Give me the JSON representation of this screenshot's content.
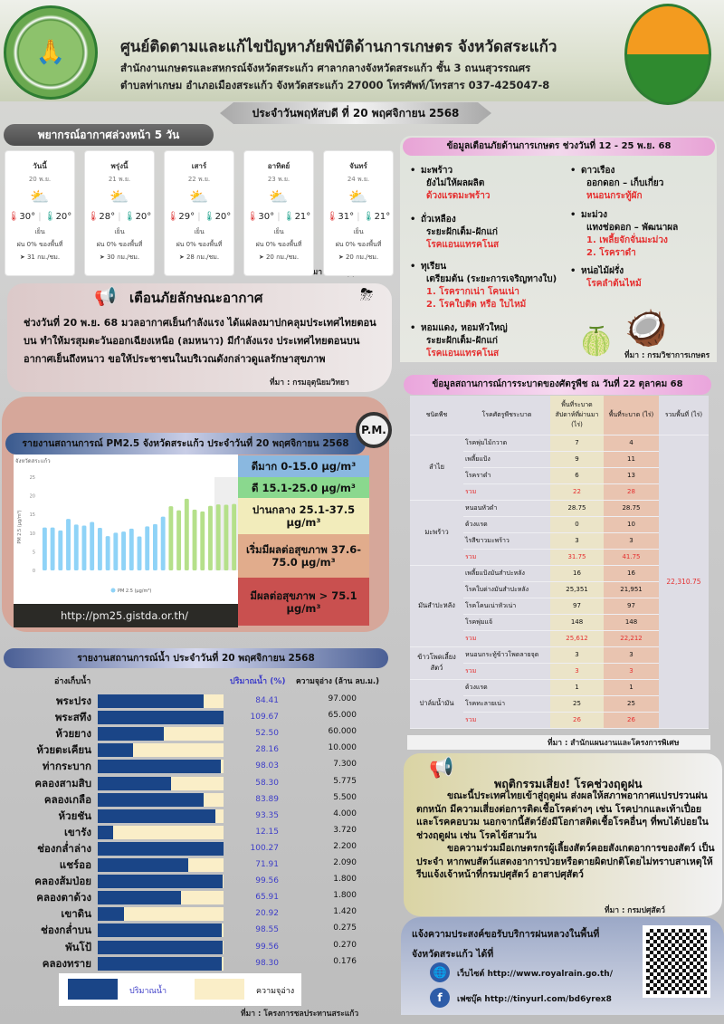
{
  "header": {
    "title": "ศูนย์ติดตามและแก้ไขปัญหาภัยพิบัติด้านการเกษตร จังหวัดสระแก้ว",
    "address1": "สำนักงานเกษตรและสหกรณ์จังหวัดสระแก้ว ศาลากลางจังหวัดสระแก้ว ชั้น 3 ถนนสุวรรณศร",
    "address2": "ตำบลท่าเกษม อำเภอเมืองสระแก้ว จังหวัดสระแก้ว 27000 โทรศัพท์/โทรสาร 037-425047-8",
    "date": "ประจำวันพฤหัสบดี ที่ 20 พฤศจิกายน 2568",
    "logo_left_text": "กระทรวงเกษตรและสหกรณ์ MINISTRY OF AGRICULTURE AND COOPERATIVES"
  },
  "weather": {
    "title": "พยากรณ์อากาศล่วงหน้า 5 วัน",
    "source": "ที่มา : กรมอุตุนิยมวิทยา",
    "days": [
      {
        "day": "วันนี้",
        "date": "20 พ.ย.",
        "high": "30°",
        "low": "20°",
        "cond": "เย็น",
        "rain": "ฝน 0% ของพื้นที่",
        "wind": "31 กม./ชม.",
        "icon": "partly-cloudy-icon"
      },
      {
        "day": "พรุ่งนี้",
        "date": "21 พ.ย.",
        "high": "28°",
        "low": "20°",
        "cond": "เย็น",
        "rain": "ฝน 0% ของพื้นที่",
        "wind": "30 กม./ชม.",
        "icon": "partly-cloudy-icon"
      },
      {
        "day": "เสาร์",
        "date": "22 พ.ย.",
        "high": "29°",
        "low": "20°",
        "cond": "เย็น",
        "rain": "ฝน 0% ของพื้นที่",
        "wind": "28 กม./ชม.",
        "icon": "partly-cloudy-icon"
      },
      {
        "day": "อาทิตย์",
        "date": "23 พ.ย.",
        "high": "30°",
        "low": "21°",
        "cond": "เย็น",
        "rain": "ฝน 0% ของพื้นที่",
        "wind": "20 กม./ชม.",
        "icon": "partly-cloudy-icon"
      },
      {
        "day": "จันทร์",
        "date": "24 พ.ย.",
        "high": "31°",
        "low": "21°",
        "cond": "เย็น",
        "rain": "ฝน 0% ของพื้นที่",
        "wind": "20 กม./ชม.",
        "icon": "partly-cloudy-icon"
      }
    ]
  },
  "weather_warning": {
    "title": "เตือนภัยลักษณะอากาศ",
    "body": "ช่วงวันที่ 20 พ.ย. 68 มวลอากาศเย็นกำลังแรง ได้แผ่ลงมาปกคลุมประเทศไทยตอนบน ทำให้มรสุมตะวันออกเฉียงเหนือ (ลมหนาว) มีกำลังแรง ประเทศไทยตอนบนอากาศเย็นถึงหนาว ขอให้ประชาชนในบริเวณดังกล่าวดูแลรักษาสุขภาพ",
    "source": "ที่มา : กรมอุตุนิยมวิทยา"
  },
  "pm25": {
    "title": "รายงานสถานการณ์ PM2.5 จังหวัดสระแก้ว ประจำวันที่ 20 พฤศจิกายน 2568",
    "badge": "P.M.",
    "url": "http://pm25.gistda.or.th/",
    "levels": [
      {
        "label": "ดีมาก 0-15.0 µg/m³",
        "color": "#8ab8e0"
      },
      {
        "label": "ดี 15.1-25.0 µg/m³",
        "color": "#8ad88e"
      },
      {
        "label": "ปานกลาง 25.1-37.5 µg/m³",
        "color": "#f2ecbb"
      },
      {
        "label": "เริ่มมีผลต่อสุขภาพ 37.6-75.0 µg/m³",
        "color": "#e1ac8c"
      },
      {
        "label": "มีผลต่อสุขภาพ > 75.1 µg/m³",
        "color": "#c9504f"
      }
    ]
  },
  "chart_data": {
    "type": "bar",
    "title": "จังหวัดสระแก้ว",
    "ylabel": "PM 2.5 (µg/m³)",
    "legend": "PM 2.5 (µg/m³)",
    "legend_position": "bottom",
    "ylim": [
      0,
      25
    ],
    "yticks": [
      0,
      5,
      10,
      15,
      20,
      25
    ],
    "grid": false,
    "values": [
      11.5,
      11.5,
      10.7,
      13.8,
      12.3,
      12.0,
      13.0,
      11.4,
      9.2,
      10.1,
      10.4,
      11.2,
      9.1,
      11.8,
      12.4,
      14.4,
      17.2,
      16.1,
      19.2,
      16.3,
      15.8,
      17.3,
      17.7,
      17.6,
      17.8
    ],
    "colors": {
      "very_good": "#8fd3f7",
      "good": "#b5e08a"
    }
  },
  "water": {
    "title": "รายงานสถานการณ์น้ำ ประจำวันที่ 20 พฤศจิกายน 2568",
    "col_name": "อ่างเก็บน้ำ",
    "col_pct": "ปริมาณน้ำ (%)",
    "col_cap": "ความจุอ่าง (ล้าน ลบ.ม.)",
    "legend_water": "ปริมาณน้ำ",
    "legend_cap": "ความจุอ่าง",
    "source": "ที่มา : โครงการชลประทานสระแก้ว",
    "colors": {
      "water": "#1a4587",
      "capacity": "#faeec8"
    },
    "rows": [
      [
        "พระปรง",
        "84.41",
        "97.000"
      ],
      [
        "พระสทึง",
        "109.67",
        "65.000"
      ],
      [
        "ห้วยยาง",
        "52.50",
        "60.000"
      ],
      [
        "ห้วยตะเคียน",
        "28.16",
        "10.000"
      ],
      [
        "ท่ากระบาก",
        "98.03",
        "7.300"
      ],
      [
        "คลองสามสิบ",
        "58.30",
        "5.775"
      ],
      [
        "คลองเกลือ",
        "83.89",
        "5.500"
      ],
      [
        "ห้วยชัน",
        "93.35",
        "4.000"
      ],
      [
        "เขารัง",
        "12.15",
        "3.720"
      ],
      [
        "ช่องกล่ำล่าง",
        "100.27",
        "2.200"
      ],
      [
        "แชร์ออ",
        "71.91",
        "2.090"
      ],
      [
        "คลองส้มป่อย",
        "99.56",
        "1.800"
      ],
      [
        "คลองตาด้วง",
        "65.91",
        "1.800"
      ],
      [
        "เขาดิน",
        "20.92",
        "1.420"
      ],
      [
        "ช่องกล่ำบน",
        "98.55",
        "0.275"
      ],
      [
        "พันโป้",
        "99.56",
        "0.270"
      ],
      [
        "คลองทราย",
        "98.30",
        "0.176"
      ]
    ]
  },
  "disaster": {
    "title": "ข้อมูลเตือนภัยด้านการเกษตร ช่วงวันที่ 12 - 25 พ.ย. 68",
    "source": "ที่มา : กรมวิชาการเกษตร",
    "left": [
      {
        "crop": "มะพร้าว",
        "stage": "ยังไม่ให้ผลผลิต",
        "risks": [
          "ด้วงแรดมะพร้าว"
        ]
      },
      {
        "crop": "ถั่วเหลือง",
        "stage": "ระยะฝักเต็ม-ฝักแก่",
        "risks": [
          "โรคแอนแทรคโนส"
        ]
      },
      {
        "crop": "ทุเรียน",
        "stage": "เตรียมต้น (ระยะการเจริญทางใบ)",
        "risks": [
          "1. โรครากเน่า โคนเน่า",
          "2. โรคใบติด หรือ ใบไหม้"
        ]
      },
      {
        "crop": "หอมแดง, หอมหัวใหญ่",
        "stage": "ระยะฝักเต็ม-ฝักแก่",
        "risks": [
          "โรคแอนแทรคโนส"
        ]
      }
    ],
    "right": [
      {
        "crop": "ดาวเรือง",
        "stage": "ออกดอก – เก็บเกี่ยว",
        "risks": [
          "หนอนกระทู้ผัก"
        ]
      },
      {
        "crop": "มะม่วง",
        "stage": "แทงช่อดอก – พัฒนาผล",
        "risks": [
          "1. เพลี้ยจักจั่นมะม่วง",
          "2. โรคราดำ"
        ]
      },
      {
        "crop": "หน่อไม้ฝรั่ง",
        "stage": "",
        "risks": [
          "โรคลำต้นไหม้"
        ]
      }
    ]
  },
  "pest": {
    "title": "ข้อมูลสถานการณ์การระบาดของศัตรูพืช ณ วันที่ 22 ตุลาคม 68",
    "headers": [
      "ชนิดพืช",
      "โรคศัตรูพืชระบาด",
      "พื้นที่ระบาด สัปดาห์ที่ผ่านมา (ไร่)",
      "พื้นที่ระบาด (ไร่)",
      "รวมพื้นที่ (ไร่)"
    ],
    "grand_total": "22,310.75",
    "source": "ที่มา : สำนักแผนงานและโครงการพิเศษ",
    "total_label": "รวม",
    "groups": [
      {
        "crop": "ลำไย",
        "rows": [
          [
            "โรคพุ่มไม้กวาด",
            "7",
            "4"
          ],
          [
            "เพลี้ยแป้ง",
            "9",
            "11"
          ],
          [
            "โรคราดำ",
            "6",
            "13"
          ]
        ],
        "total": [
          "22",
          "28"
        ]
      },
      {
        "crop": "มะพร้าว",
        "rows": [
          [
            "หนอนหัวดำ",
            "28.75",
            "28.75"
          ],
          [
            "ด้วงแรด",
            "0",
            "10"
          ],
          [
            "ไรสีขาวมะพร้าว",
            "3",
            "3"
          ]
        ],
        "total": [
          "31.75",
          "41.75"
        ]
      },
      {
        "crop": "มันสำปะหลัง",
        "rows": [
          [
            "เพลี้ยแป้งมันสำปะหลัง",
            "16",
            "16"
          ],
          [
            "โรคใบด่างมันสำปะหลัง",
            "25,351",
            "21,951"
          ],
          [
            "โรคโคนเน่าหัวเน่า",
            "97",
            "97"
          ],
          [
            "โรคพุ่มแจ้",
            "148",
            "148"
          ]
        ],
        "total": [
          "25,612",
          "22,212"
        ]
      },
      {
        "crop": "ข้าวโพดเลี้ยงสัตว์",
        "rows": [
          [
            "หนอนกระทู้ข้าวโพดลายจุด",
            "3",
            "3"
          ]
        ],
        "total": [
          "3",
          "3"
        ]
      },
      {
        "crop": "ปาล์มน้ำมัน",
        "rows": [
          [
            "ด้วงแรด",
            "1",
            "1"
          ],
          [
            "โรคทะลายเน่า",
            "25",
            "25"
          ]
        ],
        "total": [
          "26",
          "26"
        ]
      }
    ]
  },
  "livestock": {
    "title": "พฤติกรรมเสี่ยง! โรคช่วงฤดูฝน",
    "p1": "ขณะนี้ประเทศไทยเข้าสู่ฤดูฝน ส่งผลให้สภาพอากาศแปรปรวนฝนตกหนัก มีความเสี่ยงต่อการติดเชื้อโรคต่างๆ เช่น โรคปากและเท้าเปื่อย และโรคคอบวม นอกจากนี้สัตว์ยังมีโอกาสติดเชื้อโรคอื่นๆ ที่พบได้บ่อยในช่วงฤดูฝน เช่น โรคไข้สามวัน",
    "p2": "ขอความร่วมมือเกษตรกรผู้เลี้ยงสัตว์คอยสังเกตอาการของสัตว์ เป็นประจำ หากพบสัตว์แสดงอาการป่วยหรือตายผิดปกติโดยไม่ทราบสาเหตุให้รีบแจ้งเจ้าหน้าที่กรมปศุสัตว์ อาสาปศุสัตว์",
    "source": "ที่มา : กรมปศุสัตว์"
  },
  "rain": {
    "line1": "แจ้งความประสงค์ขอรับบริการฝนหลวงในพื้นที่",
    "line2": "จังหวัดสระแก้ว ได้ที่",
    "website": "เว็บไซต์ http://www.royalrain.go.th/",
    "facebook": "เฟซบุ๊ค http://tinyurl.com/bd6yrex8"
  }
}
